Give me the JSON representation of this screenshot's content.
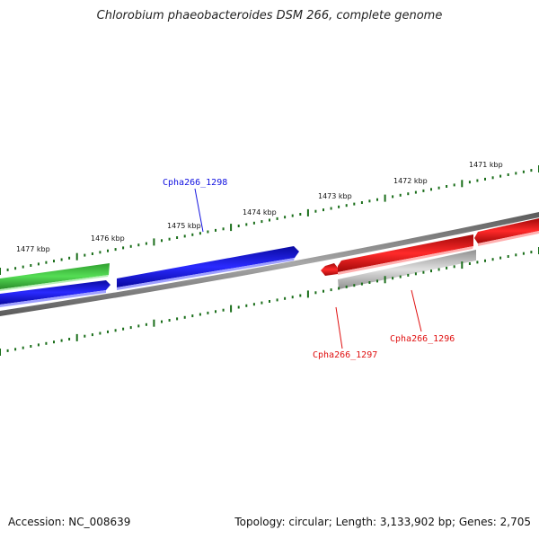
{
  "title": "Chlorobium phaeobacteroides DSM 266, complete genome",
  "footer": {
    "accession": "Accession: NC_008639",
    "summary": "Topology: circular; Length: 3,133,902 bp; Genes: 2,705"
  },
  "colors": {
    "backbone": "#808080",
    "tick": "#1a6e1a",
    "green_gene": "#3cc43c",
    "blue_gene": "#1010e0",
    "red_gene": "#e01010",
    "grey_gene": "#b8b8b8"
  },
  "ruler": {
    "tick_labels": [
      "1477 kbp",
      "1476 kbp",
      "1475 kbp",
      "1474 kbp",
      "1473 kbp",
      "1472 kbp",
      "1471 kbp"
    ]
  },
  "gene_labels": {
    "blue": "Cpha266_1298",
    "red_1": "Cpha266_1297",
    "red_2": "Cpha266_1296"
  }
}
